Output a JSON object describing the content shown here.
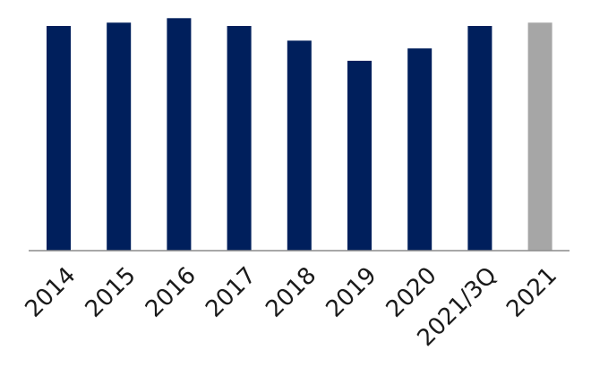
{
  "chart_data": {
    "type": "bar",
    "title": "",
    "xlabel": "",
    "ylabel": "",
    "categories": [
      "2014",
      "2015",
      "2016",
      "2017",
      "2018",
      "2019",
      "2020",
      "2021/3Q",
      "2021"
    ],
    "values": [
      100,
      101.5,
      103.5,
      100,
      93.5,
      84.5,
      90,
      100,
      101.5
    ],
    "ylim": [
      0,
      104
    ],
    "grid": false,
    "legend": "none",
    "colors": {
      "primary": "#001f5c",
      "highlight": "#a6a6a6",
      "axis": "#8c8c8c"
    },
    "bar_colors": [
      "primary",
      "primary",
      "primary",
      "primary",
      "primary",
      "primary",
      "primary",
      "primary",
      "highlight"
    ]
  }
}
